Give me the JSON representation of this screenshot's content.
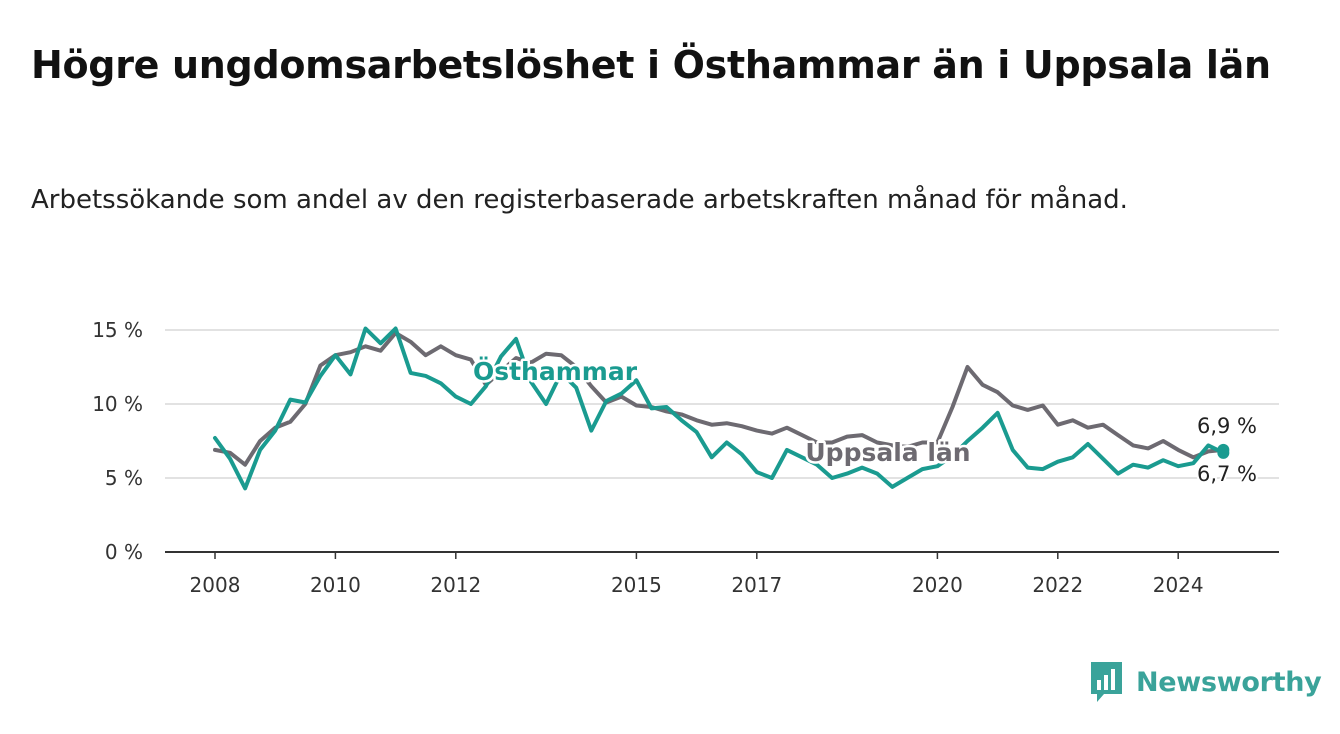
{
  "header": {
    "title": "Högre ungdomsarbetslöshet i Östhammar än i Uppsala län",
    "subtitle": "Arbetssökande som andel av den registerbaserade arbetskraften månad för månad."
  },
  "brand": {
    "name": "Newsworthy",
    "icon": "bar-chart-icon",
    "color": "#3aa39a"
  },
  "chart_data": {
    "type": "line",
    "title": "Högre ungdomsarbetslöshet i Östhammar än i Uppsala län",
    "subtitle": "Arbetssökande som andel av den registerbaserade arbetskraften månad för månad.",
    "xlabel": "",
    "ylabel": "",
    "x_ticks": [
      "2008",
      "2010",
      "2012",
      "2015",
      "2017",
      "2020",
      "2022",
      "2024"
    ],
    "y_ticks": [
      "0 %",
      "5 %",
      "10 %",
      "15 %"
    ],
    "y_tick_values": [
      0,
      5,
      10,
      15
    ],
    "ylim": [
      0,
      15
    ],
    "grid": true,
    "legend": "inline labels",
    "series": [
      {
        "name": "Uppsala län",
        "color": "#6d6a71",
        "x": [
          "2008-01",
          "2008-04",
          "2008-07",
          "2008-10",
          "2009-01",
          "2009-04",
          "2009-07",
          "2009-10",
          "2010-01",
          "2010-04",
          "2010-07",
          "2010-10",
          "2011-01",
          "2011-04",
          "2011-07",
          "2011-10",
          "2012-01",
          "2012-04",
          "2012-07",
          "2012-10",
          "2013-01",
          "2013-04",
          "2013-07",
          "2013-10",
          "2014-01",
          "2014-04",
          "2014-07",
          "2014-10",
          "2015-01",
          "2015-04",
          "2015-07",
          "2015-10",
          "2016-01",
          "2016-04",
          "2016-07",
          "2016-10",
          "2017-01",
          "2017-04",
          "2017-07",
          "2017-10",
          "2018-01",
          "2018-04",
          "2018-07",
          "2018-10",
          "2019-01",
          "2019-04",
          "2019-07",
          "2019-10",
          "2020-01",
          "2020-04",
          "2020-07",
          "2020-10",
          "2021-01",
          "2021-04",
          "2021-07",
          "2021-10",
          "2022-01",
          "2022-04",
          "2022-07",
          "2022-10",
          "2023-01",
          "2023-04",
          "2023-07",
          "2023-10",
          "2024-01",
          "2024-04",
          "2024-07",
          "2024-10"
        ],
        "values": [
          6.9,
          6.7,
          5.9,
          7.5,
          8.4,
          8.8,
          10.0,
          12.6,
          13.3,
          13.5,
          13.9,
          13.6,
          14.8,
          14.2,
          13.3,
          13.9,
          13.3,
          13.0,
          11.3,
          12.2,
          13.1,
          12.8,
          13.4,
          13.3,
          12.5,
          11.2,
          10.1,
          10.5,
          9.9,
          9.8,
          9.5,
          9.3,
          8.9,
          8.6,
          8.7,
          8.5,
          8.2,
          8.0,
          8.4,
          7.9,
          7.4,
          7.4,
          7.8,
          7.9,
          7.4,
          7.2,
          7.1,
          7.4,
          7.4,
          9.8,
          12.5,
          11.3,
          10.8,
          9.9,
          9.6,
          9.9,
          8.6,
          8.9,
          8.4,
          8.6,
          7.9,
          7.2,
          7.0,
          7.5,
          6.9,
          6.4,
          6.8,
          6.9
        ]
      },
      {
        "name": "Östhammar",
        "color": "#1a9b90",
        "x": [
          "2008-01",
          "2008-04",
          "2008-07",
          "2008-10",
          "2009-01",
          "2009-04",
          "2009-07",
          "2009-10",
          "2010-01",
          "2010-04",
          "2010-07",
          "2010-10",
          "2011-01",
          "2011-04",
          "2011-07",
          "2011-10",
          "2012-01",
          "2012-04",
          "2012-07",
          "2012-10",
          "2013-01",
          "2013-04",
          "2013-07",
          "2013-10",
          "2014-01",
          "2014-04",
          "2014-07",
          "2014-10",
          "2015-01",
          "2015-04",
          "2015-07",
          "2015-10",
          "2016-01",
          "2016-04",
          "2016-07",
          "2016-10",
          "2017-01",
          "2017-04",
          "2017-07",
          "2017-10",
          "2018-01",
          "2018-04",
          "2018-07",
          "2018-10",
          "2019-01",
          "2019-04",
          "2019-07",
          "2019-10",
          "2020-01",
          "2020-04",
          "2020-07",
          "2020-10",
          "2021-01",
          "2021-04",
          "2021-07",
          "2021-10",
          "2022-01",
          "2022-04",
          "2022-07",
          "2022-10",
          "2023-01",
          "2023-04",
          "2023-07",
          "2023-10",
          "2024-01",
          "2024-04",
          "2024-07",
          "2024-10"
        ],
        "values": [
          7.7,
          6.3,
          4.3,
          6.9,
          8.2,
          10.3,
          10.1,
          11.9,
          13.3,
          12.0,
          15.1,
          14.1,
          15.1,
          12.1,
          11.9,
          11.4,
          10.5,
          10.0,
          11.2,
          13.2,
          14.4,
          11.5,
          10.0,
          12.1,
          11.1,
          8.2,
          10.2,
          10.7,
          11.6,
          9.7,
          9.8,
          8.9,
          8.1,
          6.4,
          7.4,
          6.6,
          5.4,
          5.0,
          6.9,
          6.4,
          5.9,
          5.0,
          5.3,
          5.7,
          5.3,
          4.4,
          5.0,
          5.6,
          5.8,
          6.5,
          7.5,
          8.4,
          9.4,
          6.9,
          5.7,
          5.6,
          6.1,
          6.4,
          7.3,
          6.3,
          5.3,
          5.9,
          5.7,
          6.2,
          5.8,
          6.0,
          7.2,
          6.7
        ]
      }
    ],
    "end_labels": [
      {
        "series": "Uppsala län",
        "text": "6,9 %"
      },
      {
        "series": "Östhammar",
        "text": "6,7 %"
      }
    ],
    "inline_labels": [
      {
        "series": "Östhammar",
        "text": "Östhammar"
      },
      {
        "series": "Uppsala län",
        "text": "Uppsala län"
      }
    ]
  }
}
